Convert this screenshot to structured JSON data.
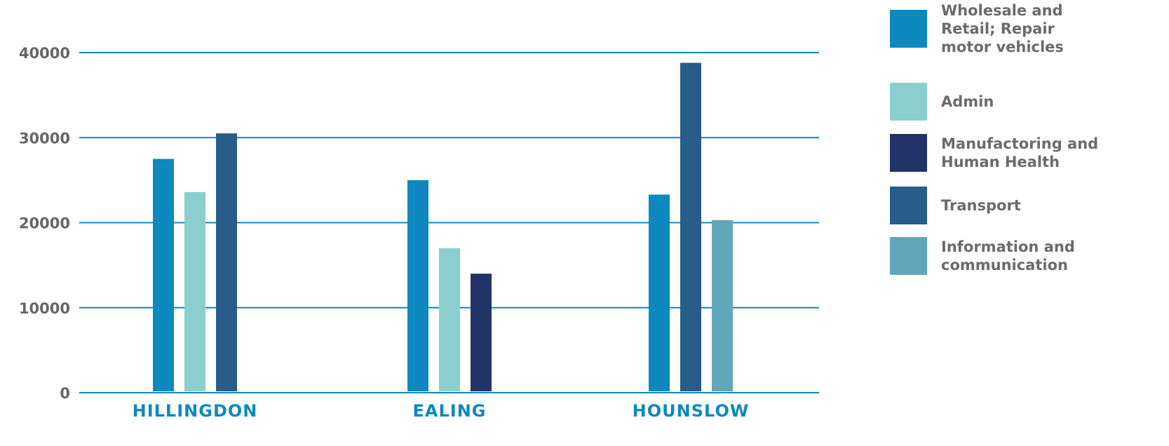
{
  "chart_data": {
    "type": "bar",
    "categories": [
      "HILLINGDON",
      "EALING",
      "HOUNSLOW"
    ],
    "series": [
      {
        "name": "Wholesale and Retail; Repair motor vehicles",
        "color": "#0d89c0",
        "values": [
          27500,
          25000,
          23300
        ]
      },
      {
        "name": "Admin",
        "color": "#8acfcd",
        "values": [
          23600,
          17000,
          null
        ]
      },
      {
        "name": "Manufactoring and Human Health",
        "color": "#22336a",
        "values": [
          null,
          14000,
          null
        ]
      },
      {
        "name": "Transport",
        "color": "#295c8b",
        "values": [
          30500,
          null,
          38800
        ]
      },
      {
        "name": "Information and communication",
        "color": "#5fa7b9",
        "values": [
          null,
          null,
          20300
        ]
      }
    ],
    "legend": [
      {
        "lines": [
          "Wholesale and",
          "Retail; Repair",
          "motor vehicles"
        ],
        "color": "#0d89c0"
      },
      {
        "lines": [
          "Admin"
        ],
        "color": "#8acfcd"
      },
      {
        "lines": [
          "Manufactoring and",
          "Human Health"
        ],
        "color": "#22336a"
      },
      {
        "lines": [
          "Transport"
        ],
        "color": "#295c8b"
      },
      {
        "lines": [
          "Information and",
          "communication"
        ],
        "color": "#5fa7b9"
      }
    ],
    "yticks": [
      0,
      10000,
      20000,
      30000,
      40000
    ],
    "ylim": [
      0,
      40000
    ],
    "grid": true,
    "legend_position": "right",
    "title": "",
    "xlabel": "",
    "ylabel": ""
  }
}
